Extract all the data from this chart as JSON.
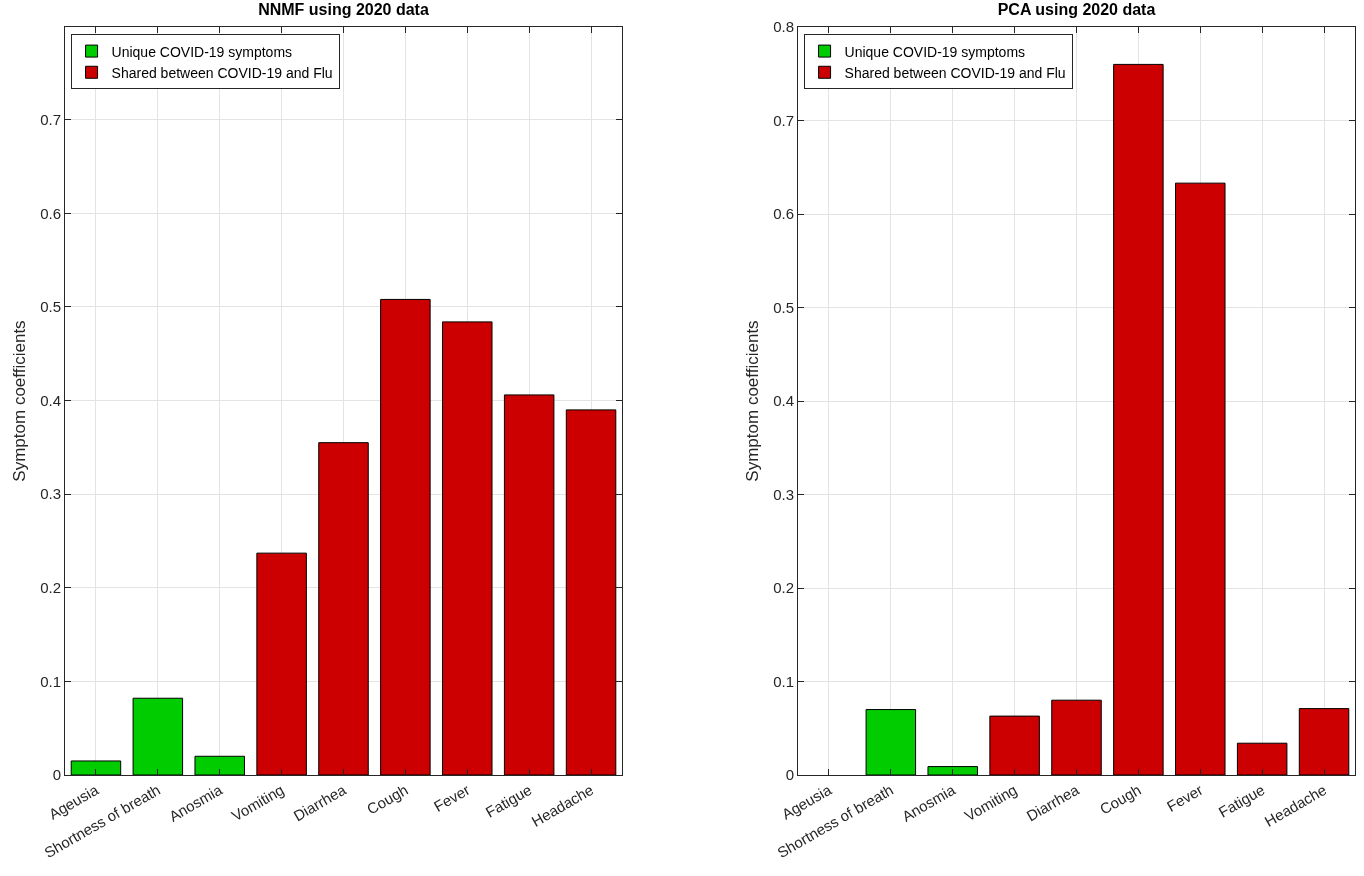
{
  "chart_data": [
    {
      "type": "bar",
      "title": "NNMF using 2020 data",
      "ylabel": "Symptom coefficients",
      "categories": [
        "Ageusia",
        "Shortness of breath",
        "Anosmia",
        "Vomiting",
        "Diarrhea",
        "Cough",
        "Fever",
        "Fatigue",
        "Headache"
      ],
      "series": [
        {
          "name": "Unique COVID-19 symptoms",
          "color": "#00cc00",
          "values": [
            0.015,
            0.082,
            0.02,
            null,
            null,
            null,
            null,
            null,
            null
          ]
        },
        {
          "name": "Shared between COVID-19 and Flu",
          "color": "#cc0000",
          "values": [
            null,
            null,
            null,
            0.237,
            0.355,
            0.508,
            0.484,
            0.406,
            0.39
          ]
        }
      ],
      "ylim": [
        0,
        0.799
      ],
      "yticks": [
        0,
        0.1,
        0.2,
        0.3,
        0.4,
        0.5,
        0.6,
        0.7
      ],
      "grid": true,
      "legend": "top left"
    },
    {
      "type": "bar",
      "title": "PCA using 2020 data",
      "ylabel": "Symptom coefficients",
      "categories": [
        "Ageusia",
        "Shortness of breath",
        "Anosmia",
        "Vomiting",
        "Diarrhea",
        "Cough",
        "Fever",
        "Fatigue",
        "Headache"
      ],
      "series": [
        {
          "name": "Unique COVID-19 symptoms",
          "color": "#00cc00",
          "values": [
            null,
            0.07,
            0.009,
            null,
            null,
            null,
            null,
            null,
            null
          ]
        },
        {
          "name": "Shared between COVID-19 and Flu",
          "color": "#cc0000",
          "values": [
            null,
            null,
            null,
            0.063,
            0.08,
            0.76,
            0.633,
            0.034,
            0.071
          ]
        }
      ],
      "ylim": [
        0,
        0.8
      ],
      "yticks": [
        0,
        0.1,
        0.2,
        0.3,
        0.4,
        0.5,
        0.6,
        0.7,
        0.8
      ],
      "grid": true,
      "legend": "top left"
    }
  ]
}
